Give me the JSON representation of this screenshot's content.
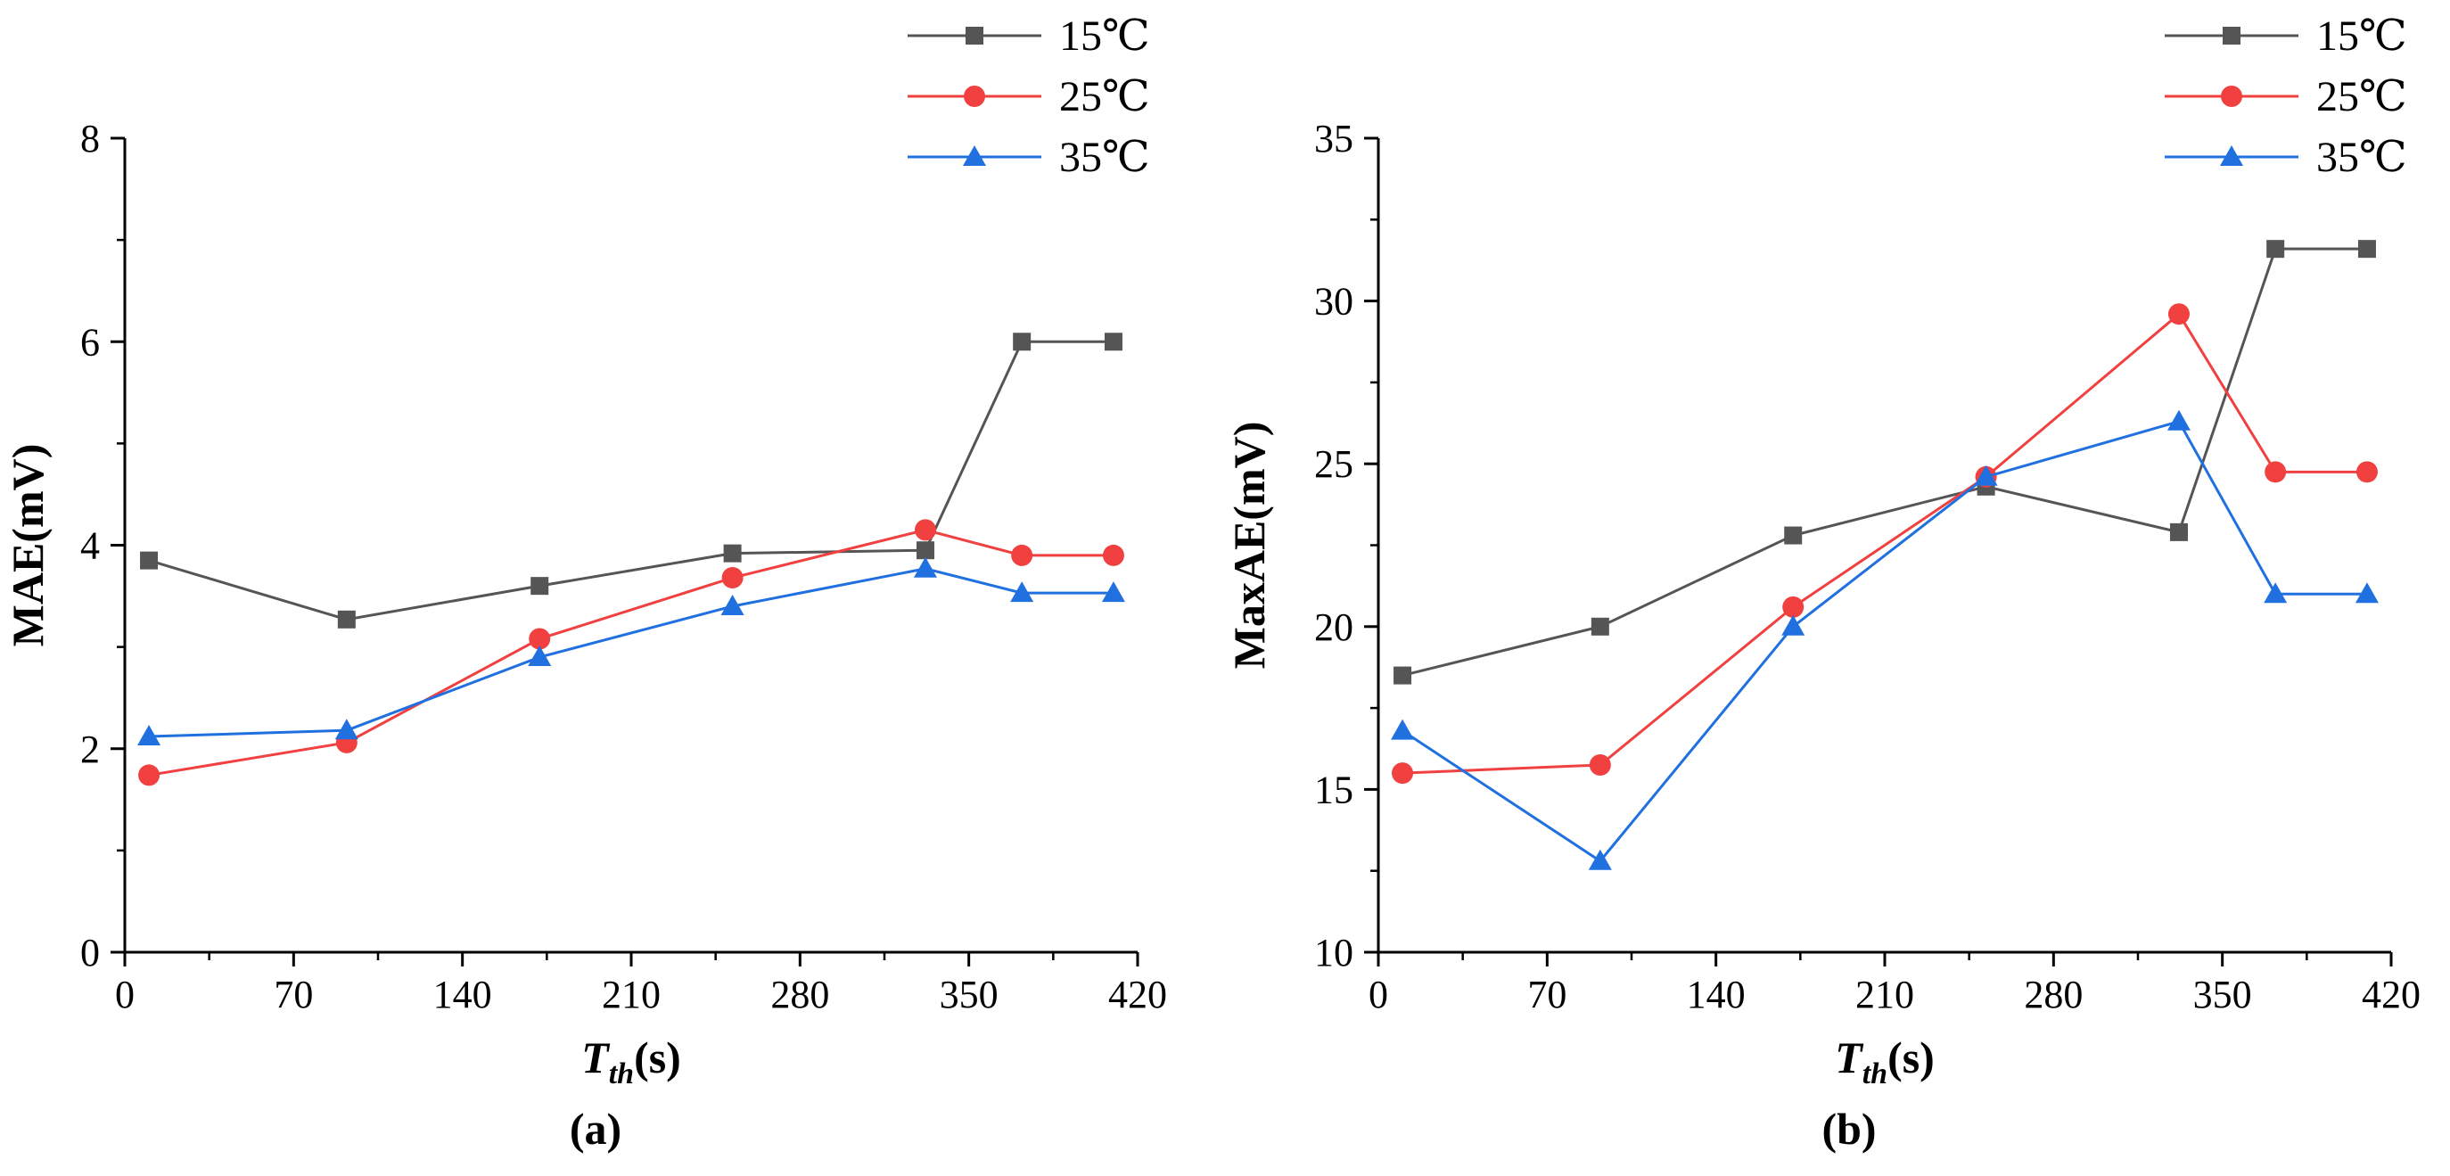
{
  "colors": {
    "s15": "#555555",
    "s25": "#f04040",
    "s35": "#2070e0",
    "axis": "#000000"
  },
  "markers": {
    "s15": "square",
    "s25": "circle",
    "s35": "triangle"
  },
  "chart_data": [
    {
      "type": "line",
      "panel_label": "(a)",
      "title": "",
      "xlabel": {
        "main": "T",
        "sub": "th",
        "unit": "(s)"
      },
      "ylabel": "MAE(mV)",
      "xlim": [
        0,
        420
      ],
      "ylim": [
        0,
        8
      ],
      "xticks": [
        0,
        70,
        140,
        210,
        280,
        350,
        420
      ],
      "xtick_labels": [
        "0",
        "70",
        "140",
        "210",
        "280",
        "350",
        "420"
      ],
      "yticks": [
        0,
        2,
        4,
        6,
        8
      ],
      "ytick_labels": [
        "0",
        "2",
        "4",
        "6",
        "8"
      ],
      "x": [
        10,
        92,
        172,
        252,
        332,
        372,
        410
      ],
      "series": [
        {
          "key": "s15",
          "name": "15℃",
          "values": [
            3.85,
            3.27,
            3.6,
            3.92,
            3.95,
            6.0,
            6.0
          ]
        },
        {
          "key": "s25",
          "name": "25℃",
          "values": [
            1.74,
            2.06,
            3.08,
            3.68,
            4.15,
            3.9,
            3.9
          ]
        },
        {
          "key": "s35",
          "name": "35℃",
          "values": [
            2.12,
            2.18,
            2.9,
            3.4,
            3.77,
            3.53,
            3.53
          ]
        }
      ],
      "legend": "top-right",
      "grid": false
    },
    {
      "type": "line",
      "panel_label": "(b)",
      "title": "",
      "xlabel": {
        "main": "T",
        "sub": "th",
        "unit": "(s)"
      },
      "ylabel": "MaxAE(mV)",
      "xlim": [
        0,
        420
      ],
      "ylim": [
        10,
        35
      ],
      "xticks": [
        0,
        70,
        140,
        210,
        280,
        350,
        420
      ],
      "xtick_labels": [
        "0",
        "70",
        "140",
        "210",
        "280",
        "350",
        "420"
      ],
      "yticks": [
        10,
        15,
        20,
        25,
        30,
        35
      ],
      "ytick_labels": [
        "10",
        "15",
        "20",
        "25",
        "30",
        "35"
      ],
      "x": [
        10,
        92,
        172,
        252,
        332,
        372,
        410
      ],
      "series": [
        {
          "key": "s15",
          "name": "15℃",
          "values": [
            18.5,
            20.0,
            22.8,
            24.3,
            22.9,
            31.6,
            31.6
          ]
        },
        {
          "key": "s25",
          "name": "25℃",
          "values": [
            15.5,
            15.75,
            20.6,
            24.6,
            29.6,
            24.75,
            24.75
          ]
        },
        {
          "key": "s35",
          "name": "35℃",
          "values": [
            16.8,
            12.8,
            20.0,
            24.6,
            26.3,
            21.0,
            21.0
          ]
        }
      ],
      "legend": "top-right",
      "grid": false
    }
  ]
}
